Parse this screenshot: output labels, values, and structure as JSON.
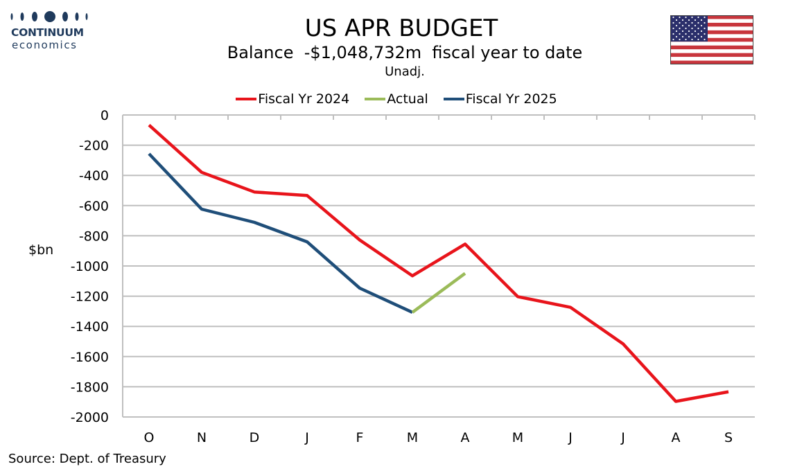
{
  "logo": {
    "name": "CONTINUUM",
    "sub": "economics",
    "brand_color": "#1f3a5c"
  },
  "flag": {
    "icon": "us-flag-icon"
  },
  "chart_data": {
    "type": "line",
    "title": "US APR BUDGET",
    "subtitle": "Balance  -$1,048,732m  fiscal year to date",
    "subtitle2": "Unadj.",
    "xlabel": "",
    "ylabel": "$bn",
    "categories": [
      "O",
      "N",
      "D",
      "J",
      "F",
      "M",
      "A",
      "M",
      "J",
      "J",
      "A",
      "S"
    ],
    "ylim": [
      -2000,
      0
    ],
    "yticks": [
      0,
      -200,
      -400,
      -600,
      -800,
      -1000,
      -1200,
      -1400,
      -1600,
      -1800,
      -2000
    ],
    "grid": true,
    "legend_position": "top",
    "series": [
      {
        "name": "Fiscal Yr 2024",
        "color": "#e8141b",
        "values": [
          -67,
          -380,
          -510,
          -533,
          -828,
          -1065,
          -855,
          -1203,
          -1274,
          -1516,
          -1897,
          -1833
        ]
      },
      {
        "name": "Actual",
        "color": "#9bbb59",
        "values": [
          null,
          null,
          null,
          null,
          null,
          -1307,
          -1049,
          null,
          null,
          null,
          null,
          null
        ]
      },
      {
        "name": "Fiscal Yr 2025",
        "color": "#1f4e79",
        "values": [
          -257,
          -624,
          -711,
          -840,
          -1147,
          -1307,
          null,
          null,
          null,
          null,
          null,
          null
        ]
      }
    ]
  },
  "source": "Source: Dept. of Treasury"
}
